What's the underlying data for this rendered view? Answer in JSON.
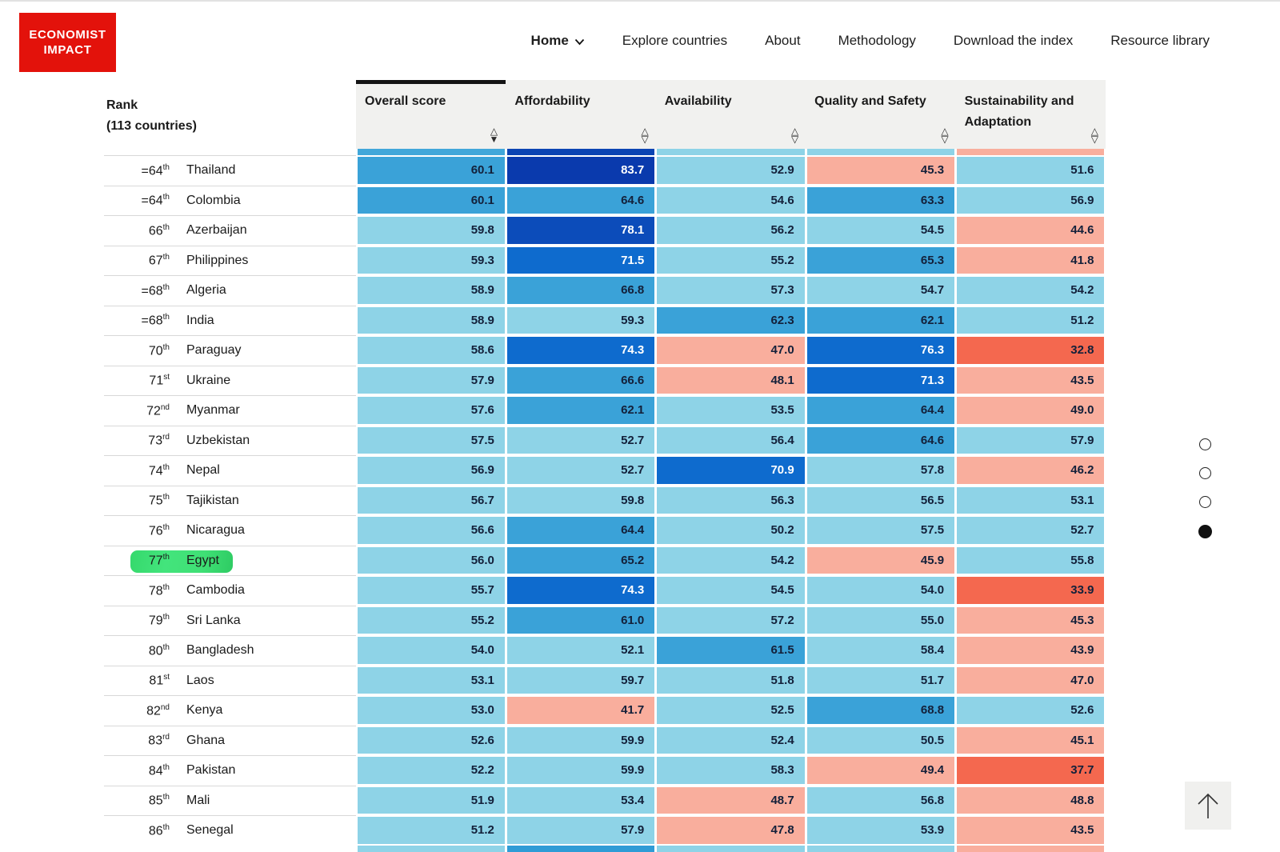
{
  "brand": {
    "line1": "ECONOMIST",
    "line2": "IMPACT",
    "color": "#e3120b"
  },
  "nav": {
    "items": [
      {
        "label": "Home",
        "active": true,
        "has_dropdown": true
      },
      {
        "label": "Explore countries",
        "active": false,
        "has_dropdown": false
      },
      {
        "label": "About",
        "active": false,
        "has_dropdown": false
      },
      {
        "label": "Methodology",
        "active": false,
        "has_dropdown": false
      },
      {
        "label": "Download the index",
        "active": false,
        "has_dropdown": false
      },
      {
        "label": "Resource library",
        "active": false,
        "has_dropdown": false
      }
    ]
  },
  "table": {
    "rank_header_line1": "Rank",
    "rank_header_line2": "(113 countries)",
    "columns": [
      {
        "label": "Overall score",
        "label2": "",
        "sort": "desc"
      },
      {
        "label": "Affordability",
        "label2": "",
        "sort": "none"
      },
      {
        "label": "Availability",
        "label2": "",
        "sort": "none"
      },
      {
        "label": "Quality and Safety",
        "label2": "",
        "sort": "none"
      },
      {
        "label": "Sustainability and",
        "label2": "Adaptation",
        "sort": "none"
      }
    ],
    "rows": [
      {
        "rank": "=64",
        "sup": "th",
        "country": "Thailand",
        "values": [
          60.1,
          83.7,
          52.9,
          45.3,
          51.6
        ],
        "highlight": false
      },
      {
        "rank": "=64",
        "sup": "th",
        "country": "Colombia",
        "values": [
          60.1,
          64.6,
          54.6,
          63.3,
          56.9
        ],
        "highlight": false
      },
      {
        "rank": "66",
        "sup": "th",
        "country": "Azerbaijan",
        "values": [
          59.8,
          78.1,
          56.2,
          54.5,
          44.6
        ],
        "highlight": false
      },
      {
        "rank": "67",
        "sup": "th",
        "country": "Philippines",
        "values": [
          59.3,
          71.5,
          55.2,
          65.3,
          41.8
        ],
        "highlight": false
      },
      {
        "rank": "=68",
        "sup": "th",
        "country": "Algeria",
        "values": [
          58.9,
          66.8,
          57.3,
          54.7,
          54.2
        ],
        "highlight": false
      },
      {
        "rank": "=68",
        "sup": "th",
        "country": "India",
        "values": [
          58.9,
          59.3,
          62.3,
          62.1,
          51.2
        ],
        "highlight": false
      },
      {
        "rank": "70",
        "sup": "th",
        "country": "Paraguay",
        "values": [
          58.6,
          74.3,
          47.0,
          76.3,
          32.8
        ],
        "highlight": false
      },
      {
        "rank": "71",
        "sup": "st",
        "country": "Ukraine",
        "values": [
          57.9,
          66.6,
          48.1,
          71.3,
          43.5
        ],
        "highlight": false
      },
      {
        "rank": "72",
        "sup": "nd",
        "country": "Myanmar",
        "values": [
          57.6,
          62.1,
          53.5,
          64.4,
          49.0
        ],
        "highlight": false
      },
      {
        "rank": "73",
        "sup": "rd",
        "country": "Uzbekistan",
        "values": [
          57.5,
          52.7,
          56.4,
          64.6,
          57.9
        ],
        "highlight": false
      },
      {
        "rank": "74",
        "sup": "th",
        "country": "Nepal",
        "values": [
          56.9,
          52.7,
          70.9,
          57.8,
          46.2
        ],
        "highlight": false
      },
      {
        "rank": "75",
        "sup": "th",
        "country": "Tajikistan",
        "values": [
          56.7,
          59.8,
          56.3,
          56.5,
          53.1
        ],
        "highlight": false
      },
      {
        "rank": "76",
        "sup": "th",
        "country": "Nicaragua",
        "values": [
          56.6,
          64.4,
          50.2,
          57.5,
          52.7
        ],
        "highlight": false
      },
      {
        "rank": "77",
        "sup": "th",
        "country": "Egypt",
        "values": [
          56.0,
          65.2,
          54.2,
          45.9,
          55.8
        ],
        "highlight": true
      },
      {
        "rank": "78",
        "sup": "th",
        "country": "Cambodia",
        "values": [
          55.7,
          74.3,
          54.5,
          54.0,
          33.9
        ],
        "highlight": false
      },
      {
        "rank": "79",
        "sup": "th",
        "country": "Sri Lanka",
        "values": [
          55.2,
          61.0,
          57.2,
          55.0,
          45.3
        ],
        "highlight": false
      },
      {
        "rank": "80",
        "sup": "th",
        "country": "Bangladesh",
        "values": [
          54.0,
          52.1,
          61.5,
          58.4,
          43.9
        ],
        "highlight": false
      },
      {
        "rank": "81",
        "sup": "st",
        "country": "Laos",
        "values": [
          53.1,
          59.7,
          51.8,
          51.7,
          47.0
        ],
        "highlight": false
      },
      {
        "rank": "82",
        "sup": "nd",
        "country": "Kenya",
        "values": [
          53.0,
          41.7,
          52.5,
          68.8,
          52.6
        ],
        "highlight": false
      },
      {
        "rank": "83",
        "sup": "rd",
        "country": "Ghana",
        "values": [
          52.6,
          59.9,
          52.4,
          50.5,
          45.1
        ],
        "highlight": false
      },
      {
        "rank": "84",
        "sup": "th",
        "country": "Pakistan",
        "values": [
          52.2,
          59.9,
          58.3,
          49.4,
          37.7
        ],
        "highlight": false
      },
      {
        "rank": "85",
        "sup": "th",
        "country": "Mali",
        "values": [
          51.9,
          53.4,
          48.7,
          56.8,
          48.8
        ],
        "highlight": false
      },
      {
        "rank": "86",
        "sup": "th",
        "country": "Senegal",
        "values": [
          51.2,
          57.9,
          47.8,
          53.9,
          43.5
        ],
        "highlight": false
      }
    ],
    "partial_row_top_colors": [
      "#41a7da",
      "#0b44b3",
      "#8ed3e7",
      "#8ed3e7",
      "#f9ae9d"
    ],
    "partial_row_bottom_colors": [
      "#8ed3e7",
      "#2f9cd6",
      "#8ed3e7",
      "#8ed3e7",
      "#f9ae9d"
    ]
  },
  "color_scale": {
    "buckets": [
      {
        "min": 82,
        "color": "#0a3aad",
        "text": "#ffffff"
      },
      {
        "min": 78,
        "color": "#0c4cba",
        "text": "#ffffff"
      },
      {
        "min": 70,
        "color": "#0e6bce",
        "text": "#ffffff"
      },
      {
        "min": 60,
        "color": "#3aa2d8",
        "text": "#13203a"
      },
      {
        "min": 50,
        "color": "#8ed3e7",
        "text": "#13203a"
      },
      {
        "min": 40,
        "color": "#f9ae9d",
        "text": "#13203a"
      },
      {
        "min": 0,
        "color": "#f4684f",
        "text": "#13203a"
      }
    ]
  },
  "highlight_marker_color": "#3fe075",
  "pagination": {
    "dot_count": 4,
    "active_index": 3
  },
  "back_to_top": {
    "icon": "up-arrow"
  }
}
